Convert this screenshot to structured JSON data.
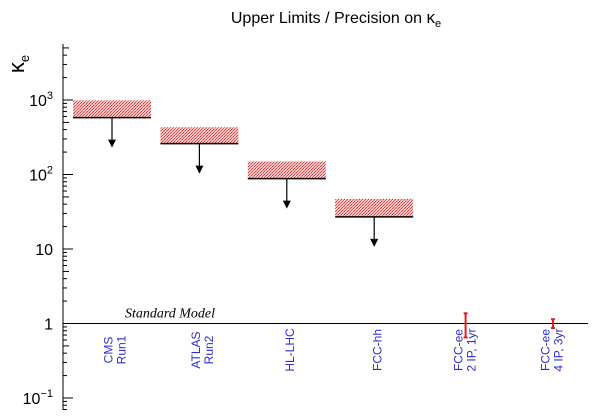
{
  "chart_data": {
    "type": "bar",
    "title": "Upper Limits / Precision on κe",
    "title_main": "Upper Limits / Precision on ",
    "title_kappa": "κ",
    "title_sub": "e",
    "ylabel_kappa": "κ",
    "ylabel_sub": "e",
    "yscale": "log",
    "ylim": [
      0.08,
      1600
    ],
    "yticks": [
      {
        "value": 0.1,
        "base": "10",
        "exp": "−1",
        "label": ""
      },
      {
        "value": 1,
        "base": "",
        "exp": "",
        "label": "1"
      },
      {
        "value": 10,
        "base": "",
        "exp": "",
        "label": "10"
      },
      {
        "value": 100,
        "base": "10",
        "exp": "2",
        "label": ""
      },
      {
        "value": 1000,
        "base": "10",
        "exp": "3",
        "label": ""
      }
    ],
    "reference_line": {
      "value": 1,
      "label": "Standard Model"
    },
    "categories": [
      {
        "lines": [
          "CMS",
          "Run1"
        ]
      },
      {
        "lines": [
          "ATLAS",
          "Run2"
        ]
      },
      {
        "lines": [
          "HL-LHC"
        ]
      },
      {
        "lines": [
          "FCC-hh"
        ]
      },
      {
        "lines": [
          "FCC-ee",
          "2 IP, 1yr"
        ]
      },
      {
        "lines": [
          "FCC-ee",
          "4 IP, 3yr"
        ]
      }
    ],
    "upper_limits": [
      {
        "category": 0,
        "low": 580,
        "high": 990
      },
      {
        "category": 1,
        "low": 260,
        "high": 430
      },
      {
        "category": 2,
        "low": 88,
        "high": 150
      },
      {
        "category": 3,
        "low": 27,
        "high": 47
      }
    ],
    "precision": [
      {
        "category": 4,
        "low": 0.65,
        "high": 1.37
      },
      {
        "category": 5,
        "low": 0.87,
        "high": 1.14
      }
    ],
    "colors": {
      "limit_fill": "#f2a4a4",
      "limit_edge": "#000000",
      "error_bar": "#e02020",
      "category_text": "#2d2dd2"
    }
  }
}
